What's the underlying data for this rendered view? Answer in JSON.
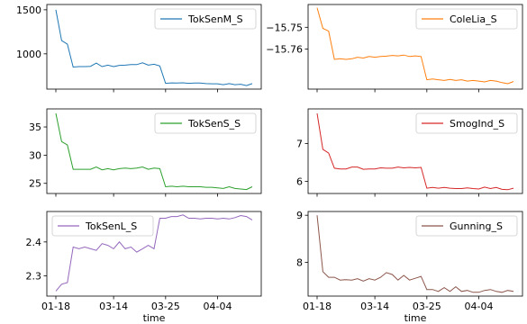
{
  "chart_data": [
    {
      "type": "line",
      "series": [
        {
          "name": "TokSenM_S",
          "color": "#1f77b4",
          "values": [
            1500,
            1150,
            1110,
            850,
            855,
            855,
            858,
            895,
            855,
            872,
            855,
            870,
            872,
            878,
            878,
            898,
            872,
            882,
            862,
            665,
            670,
            668,
            672,
            665,
            668,
            668,
            662,
            660,
            660,
            650,
            662,
            650,
            655,
            640,
            662
          ]
        }
      ],
      "yticks": [
        1000,
        1500
      ],
      "ylim": [
        600,
        1560
      ],
      "xticks": [],
      "xlabel": "",
      "legend": "top-right"
    },
    {
      "type": "line",
      "series": [
        {
          "name": "ColeLia_S",
          "color": "#ff7f0e",
          "values": [
            -15.741,
            -15.7505,
            -15.7518,
            -15.7648,
            -15.7645,
            -15.7648,
            -15.7645,
            -15.7638,
            -15.7642,
            -15.7635,
            -15.7638,
            -15.7635,
            -15.7633,
            -15.763,
            -15.7632,
            -15.7628,
            -15.7635,
            -15.7632,
            -15.7635,
            -15.7742,
            -15.7738,
            -15.7742,
            -15.7745,
            -15.774,
            -15.7745,
            -15.7742,
            -15.7748,
            -15.7745,
            -15.7748,
            -15.7752,
            -15.7745,
            -15.7748,
            -15.7755,
            -15.776,
            -15.775
          ]
        }
      ],
      "yticks": [
        -15.75,
        -15.76
      ],
      "ytick_labels": [
        "−15.75",
        "−15.76"
      ],
      "ylim": [
        -15.7785,
        -15.7395
      ],
      "xticks": [],
      "xlabel": "",
      "legend": "top-right"
    },
    {
      "type": "line",
      "series": [
        {
          "name": "TokSenS_S",
          "color": "#2ca02c",
          "values": [
            37.4,
            32.4,
            31.8,
            27.5,
            27.5,
            27.5,
            27.5,
            27.9,
            27.4,
            27.6,
            27.4,
            27.6,
            27.7,
            27.6,
            27.7,
            27.9,
            27.5,
            27.7,
            27.6,
            24.4,
            24.5,
            24.4,
            24.5,
            24.4,
            24.4,
            24.4,
            24.3,
            24.3,
            24.2,
            24.1,
            24.4,
            24.1,
            24.0,
            23.9,
            24.4
          ]
        }
      ],
      "yticks": [
        25,
        30,
        35
      ],
      "ylim": [
        23.2,
        38.2
      ],
      "xticks": [],
      "xlabel": "",
      "legend": "top-right"
    },
    {
      "type": "line",
      "series": [
        {
          "name": "SmogInd_S",
          "color": "#d62728",
          "values": [
            7.8,
            6.85,
            6.75,
            6.35,
            6.33,
            6.33,
            6.38,
            6.38,
            6.32,
            6.33,
            6.33,
            6.36,
            6.35,
            6.35,
            6.38,
            6.36,
            6.37,
            6.36,
            6.37,
            5.82,
            5.84,
            5.82,
            5.84,
            5.82,
            5.81,
            5.81,
            5.83,
            5.81,
            5.8,
            5.85,
            5.81,
            5.84,
            5.79,
            5.78,
            5.82
          ]
        }
      ],
      "yticks": [
        6,
        7
      ],
      "ylim": [
        5.68,
        7.92
      ],
      "xticks": [],
      "xlabel": "",
      "legend": "top-right"
    },
    {
      "type": "line",
      "series": [
        {
          "name": "TokSenL_S",
          "color": "#9467bd",
          "values": [
            2.255,
            2.275,
            2.28,
            2.385,
            2.38,
            2.385,
            2.38,
            2.375,
            2.395,
            2.39,
            2.38,
            2.4,
            2.38,
            2.385,
            2.37,
            2.38,
            2.39,
            2.38,
            2.47,
            2.47,
            2.475,
            2.475,
            2.48,
            2.47,
            2.47,
            2.468,
            2.47,
            2.47,
            2.468,
            2.47,
            2.468,
            2.472,
            2.478,
            2.475,
            2.465
          ]
        }
      ],
      "yticks": [
        2.3,
        2.4
      ],
      "ylim": [
        2.24,
        2.49
      ],
      "xticks": [
        "01-18",
        "03-14",
        "03-25",
        "04-04"
      ],
      "xtick_index": [
        0,
        10,
        19,
        28
      ],
      "xlabel": "time",
      "legend": "top-left"
    },
    {
      "type": "line",
      "series": [
        {
          "name": "Gunning_S",
          "color": "#8c564b",
          "values": [
            9.0,
            7.8,
            7.68,
            7.68,
            7.62,
            7.63,
            7.62,
            7.65,
            7.6,
            7.65,
            7.62,
            7.68,
            7.78,
            7.74,
            7.62,
            7.72,
            7.62,
            7.66,
            7.7,
            7.42,
            7.42,
            7.38,
            7.46,
            7.38,
            7.48,
            7.38,
            7.4,
            7.36,
            7.36,
            7.4,
            7.42,
            7.38,
            7.36,
            7.4,
            7.38
          ]
        }
      ],
      "yticks": [
        8,
        9
      ],
      "ylim": [
        7.28,
        9.08
      ],
      "xticks": [
        "01-18",
        "03-14",
        "03-25",
        "04-04"
      ],
      "xtick_index": [
        0,
        10,
        19,
        28
      ],
      "xlabel": "time",
      "legend": "top-right"
    }
  ]
}
